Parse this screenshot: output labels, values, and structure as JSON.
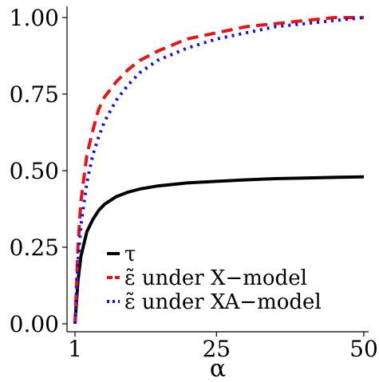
{
  "chart_data": {
    "type": "line",
    "title": "",
    "xlabel": "α",
    "ylabel": "",
    "xlim": [
      1,
      50
    ],
    "ylim": [
      0,
      1
    ],
    "grid": false,
    "legend_position": "bottom-left",
    "x_ticks": [
      {
        "value": 1,
        "label": "1"
      },
      {
        "value": 25,
        "label": "25"
      },
      {
        "value": 50,
        "label": "50"
      }
    ],
    "y_ticks": [
      {
        "value": 0,
        "label": "0.00"
      },
      {
        "value": 0.25,
        "label": "0.25"
      },
      {
        "value": 0.5,
        "label": "0.50"
      },
      {
        "value": 0.75,
        "label": "0.75"
      },
      {
        "value": 1,
        "label": "1.00"
      }
    ],
    "x": [
      1,
      1.5,
      2,
      3,
      4,
      5,
      6,
      8,
      10,
      12,
      15,
      20,
      25,
      30,
      35,
      40,
      45,
      50
    ],
    "series": [
      {
        "name": "τ",
        "color": "#000000",
        "dash": "solid",
        "values": [
          0.0,
          0.14,
          0.22,
          0.3,
          0.34,
          0.37,
          0.39,
          0.415,
          0.43,
          0.44,
          0.45,
          0.46,
          0.465,
          0.47,
          0.474,
          0.476,
          0.478,
          0.48
        ]
      },
      {
        "name": "ε̃ under X−model",
        "color": "#ee1111",
        "dash": "dashed",
        "values": [
          0.0,
          0.25,
          0.4,
          0.55,
          0.63,
          0.7,
          0.74,
          0.79,
          0.83,
          0.86,
          0.89,
          0.93,
          0.95,
          0.97,
          0.98,
          0.99,
          1.0,
          1.0
        ]
      },
      {
        "name": "ε̃ under XA−model",
        "color": "#1111ee",
        "dash": "dotted",
        "values": [
          0.0,
          0.2,
          0.32,
          0.46,
          0.55,
          0.61,
          0.66,
          0.73,
          0.78,
          0.82,
          0.86,
          0.9,
          0.93,
          0.95,
          0.97,
          0.98,
          0.99,
          1.0
        ]
      }
    ]
  }
}
